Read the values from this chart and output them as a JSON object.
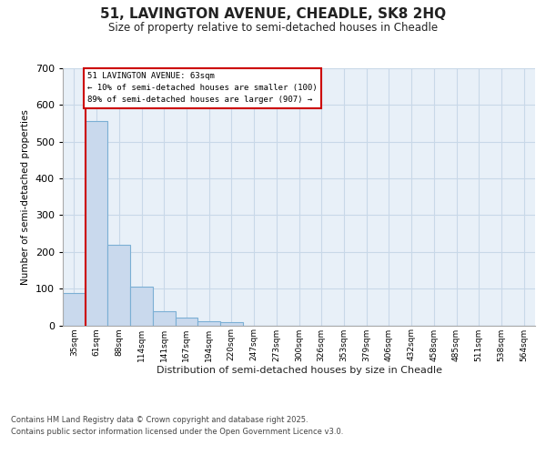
{
  "title_line1": "51, LAVINGTON AVENUE, CHEADLE, SK8 2HQ",
  "title_line2": "Size of property relative to semi-detached houses in Cheadle",
  "xlabel": "Distribution of semi-detached houses by size in Cheadle",
  "ylabel": "Number of semi-detached properties",
  "footnote": "Contains HM Land Registry data © Crown copyright and database right 2025.\nContains public sector information licensed under the Open Government Licence v3.0.",
  "bar_labels": [
    "35sqm",
    "61sqm",
    "88sqm",
    "114sqm",
    "141sqm",
    "167sqm",
    "194sqm",
    "220sqm",
    "247sqm",
    "273sqm",
    "300sqm",
    "326sqm",
    "353sqm",
    "379sqm",
    "406sqm",
    "432sqm",
    "458sqm",
    "485sqm",
    "511sqm",
    "538sqm",
    "564sqm"
  ],
  "values": [
    88,
    557,
    220,
    105,
    38,
    20,
    10,
    8,
    0,
    0,
    0,
    0,
    0,
    0,
    0,
    0,
    0,
    0,
    0,
    0,
    0
  ],
  "bar_color": "#c9d9ed",
  "bar_edge_color": "#7bafd4",
  "grid_color": "#c8d8e8",
  "bg_color": "#e8f0f8",
  "annotation_box_color": "#cc0000",
  "property_line_color": "#cc0000",
  "annotation_title": "51 LAVINGTON AVENUE: 63sqm",
  "annotation_line2": "← 10% of semi-detached houses are smaller (100)",
  "annotation_line3": "89% of semi-detached houses are larger (907) →",
  "ylim": [
    0,
    700
  ],
  "yticks": [
    0,
    100,
    200,
    300,
    400,
    500,
    600,
    700
  ]
}
